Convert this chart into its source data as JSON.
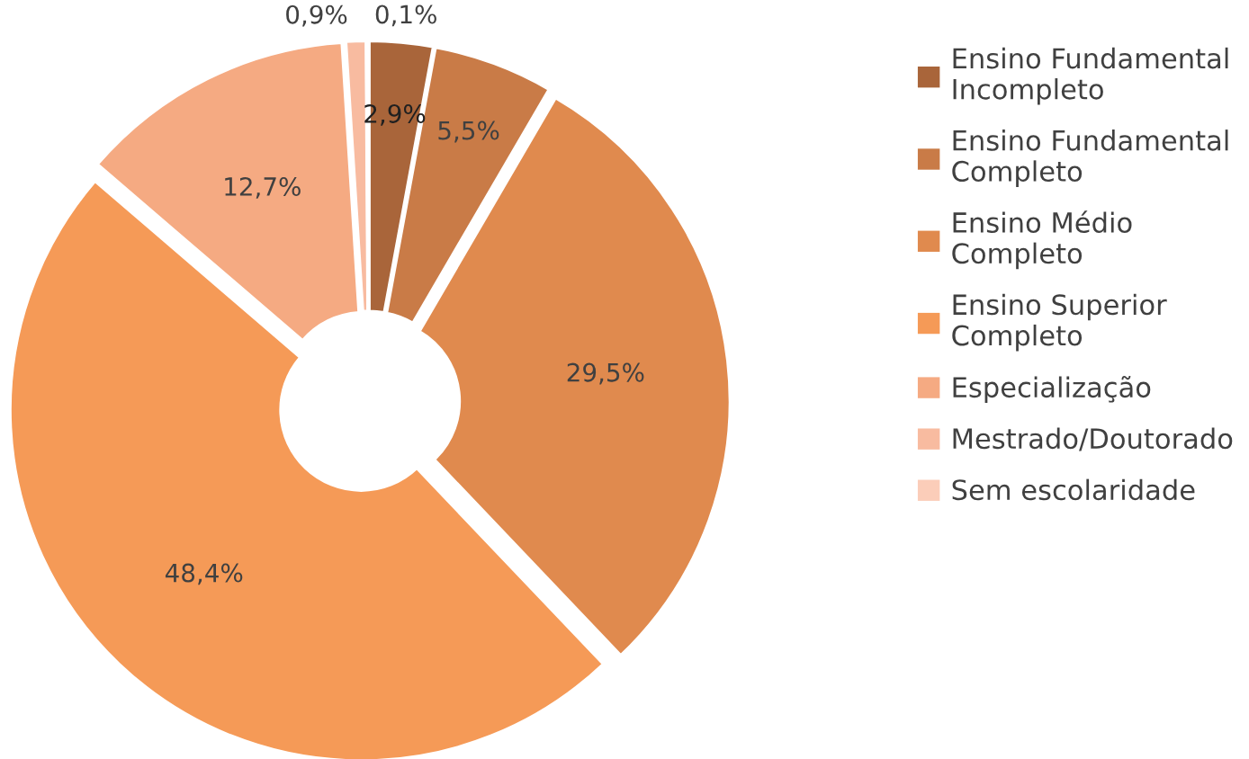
{
  "chart_data": {
    "type": "donut",
    "categories": [
      "Ensino Fundamental\nIncompleto",
      "Ensino Fundamental\nCompleto",
      "Ensino Médio\nCompleto",
      "Ensino Superior\nCompleto",
      "Especialização",
      "Mestrado/Doutorado",
      "Sem escolaridade"
    ],
    "values": [
      2.9,
      5.5,
      29.5,
      48.4,
      12.7,
      0.9,
      0.1
    ],
    "value_labels": [
      "2,9%",
      "5,5%",
      "29,5%",
      "48,4%",
      "12,7%",
      "0,9%",
      "0,1%"
    ],
    "colors": [
      "#a9653a",
      "#c97b47",
      "#e08a4e",
      "#f59a57",
      "#f5aa82",
      "#f8bba0",
      "#fbcdb9"
    ],
    "legend": "right"
  }
}
